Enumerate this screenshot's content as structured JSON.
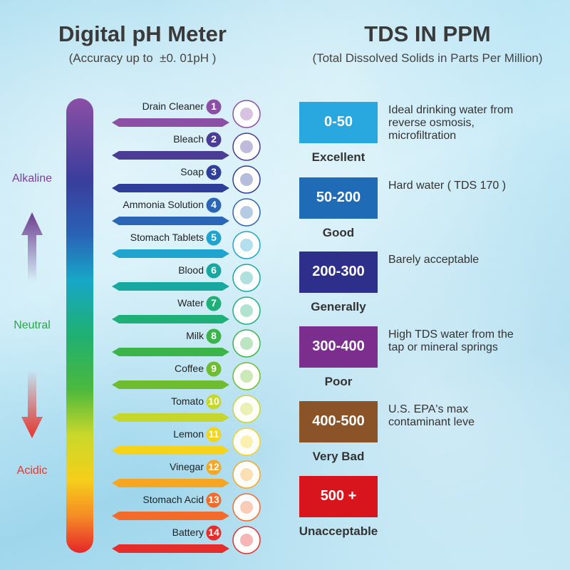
{
  "ph": {
    "title": "Digital pH Meter",
    "subtitle": "(Accuracy up to  ±0. 01pH )",
    "scale_labels": [
      "Alkaline",
      "Neutral",
      "Acidic"
    ],
    "items": [
      {
        "label": "Drain Cleaner",
        "number": 1
      },
      {
        "label": "Bleach",
        "number": 2
      },
      {
        "label": "Soap",
        "number": 3
      },
      {
        "label": "Ammonia Solution",
        "number": 4
      },
      {
        "label": "Stomach Tablets",
        "number": 5
      },
      {
        "label": "Blood",
        "number": 6
      },
      {
        "label": "Water",
        "number": 7
      },
      {
        "label": "Milk",
        "number": 8
      },
      {
        "label": "Coffee",
        "number": 9
      },
      {
        "label": "Tomato",
        "number": 10
      },
      {
        "label": "Lemon",
        "number": 11
      },
      {
        "label": "Vinegar",
        "number": 12
      },
      {
        "label": "Stomach Acid",
        "number": 13
      },
      {
        "label": "Battery",
        "number": 14
      }
    ]
  },
  "tds": {
    "title": "TDS IN PPM",
    "subtitle": "(Total Dissolved Solids in Parts Per Million)",
    "levels": [
      {
        "range": "0-50",
        "rating": "Excellent",
        "description": [
          "Ideal drinking water from",
          "reverse osmosis,",
          "microfiltration"
        ]
      },
      {
        "range": "50-200",
        "rating": "Good",
        "description": [
          "Hard water ( TDS 170 )"
        ]
      },
      {
        "range": "200-300",
        "rating": "Generally",
        "description": [
          "Barely acceptable"
        ]
      },
      {
        "range": "300-400",
        "rating": "Poor",
        "description": [
          "High TDS water from the",
          "tap or mineral springs"
        ]
      },
      {
        "range": "400-500",
        "rating": "Very Bad",
        "description": [
          "U.S. EPA's max",
          "contaminant leve"
        ]
      },
      {
        "range": "500 +",
        "rating": "Unacceptable",
        "description": []
      }
    ]
  }
}
